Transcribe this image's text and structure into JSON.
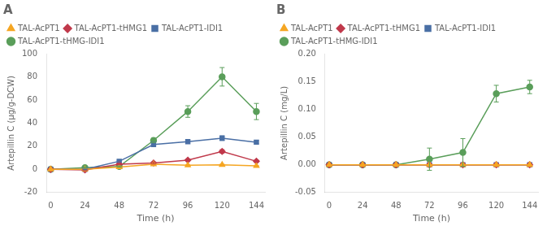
{
  "chart_data": [
    {
      "type": "line",
      "title": "A",
      "xlabel": "Time (h)",
      "ylabel": "Artepillin C (μg/g-DCW)",
      "x": [
        0,
        24,
        48,
        72,
        96,
        120,
        144
      ],
      "xlim": [
        -3,
        150
      ],
      "xticks": [
        0,
        24,
        48,
        72,
        96,
        120,
        144
      ],
      "ylim": [
        -20,
        100
      ],
      "yticks": [
        -20,
        0,
        20,
        40,
        60,
        80,
        100
      ],
      "grid": false,
      "legend": "upper left",
      "series": [
        {
          "name": "TAL-AcPT1",
          "color": "#F5A623",
          "marker": "triangle",
          "values": [
            0,
            0,
            2.0,
            4.5,
            3.5,
            4.0,
            3.0
          ],
          "errors": [
            0,
            0.3,
            0.4,
            0.5,
            0.5,
            0.5,
            0.4
          ]
        },
        {
          "name": "TAL-AcPT1-tHMG1",
          "color": "#C0394B",
          "marker": "diamond",
          "values": [
            0,
            -0.5,
            4.5,
            5.5,
            8.0,
            15.5,
            7.0
          ],
          "errors": [
            0,
            0.2,
            0.5,
            0.8,
            0.8,
            1.5,
            0.8
          ]
        },
        {
          "name": "TAL-AcPT1-IDI1",
          "color": "#4A6FA5",
          "marker": "square",
          "values": [
            0,
            0,
            7.0,
            21.5,
            24.0,
            27.0,
            23.5
          ],
          "errors": [
            0,
            0.3,
            0.8,
            1.5,
            1.5,
            2.0,
            1.5
          ]
        },
        {
          "name": "TAL-AcPT1-tHMG-IDI1",
          "color": "#5A9E5A",
          "marker": "circle",
          "values": [
            0,
            1.5,
            2.5,
            25.0,
            50.0,
            80.0,
            50.0
          ],
          "errors": [
            0,
            0.3,
            0.5,
            2.0,
            5.0,
            8.0,
            7.0
          ]
        }
      ]
    },
    {
      "type": "line",
      "title": "B",
      "xlabel": "Time (h)",
      "ylabel": "Artepillin C (mg/L)",
      "x": [
        0,
        24,
        48,
        72,
        96,
        120,
        144
      ],
      "xlim": [
        -3,
        150
      ],
      "xticks": [
        0,
        24,
        48,
        72,
        96,
        120,
        144
      ],
      "ylim": [
        -0.05,
        0.2
      ],
      "yticks": [
        -0.05,
        {
          "value": 0,
          "label": "0.00"
        },
        0.05,
        {
          "value": 0.1,
          "label": "0.10"
        },
        0.15,
        {
          "value": 0.2,
          "label": "0.20"
        }
      ],
      "grid": false,
      "legend": "upper left",
      "series": [
        {
          "name": "TAL-AcPT1",
          "color": "#F5A623",
          "marker": "triangle",
          "values": [
            0,
            0,
            0,
            0,
            0,
            0,
            0
          ],
          "errors": [
            0,
            0,
            0,
            0,
            0,
            0,
            0
          ]
        },
        {
          "name": "TAL-AcPT1-tHMG1",
          "color": "#C0394B",
          "marker": "diamond",
          "values": [
            0,
            0,
            0,
            0,
            0,
            0,
            0
          ],
          "errors": [
            0,
            0,
            0,
            0,
            0,
            0,
            0
          ]
        },
        {
          "name": "TAL-AcPT1-IDI1",
          "color": "#4A6FA5",
          "marker": "square",
          "values": [
            0,
            0,
            0,
            0,
            0,
            0,
            0
          ],
          "errors": [
            0,
            0,
            0,
            0,
            0,
            0,
            0
          ]
        },
        {
          "name": "TAL-AcPT1-tHMG-IDI1",
          "color": "#5A9E5A",
          "marker": "circle",
          "values": [
            0,
            0,
            0,
            0.01,
            0.022,
            0.128,
            0.14
          ],
          "errors": [
            0,
            0,
            0,
            0.02,
            0.025,
            0.015,
            0.012
          ]
        }
      ]
    }
  ]
}
